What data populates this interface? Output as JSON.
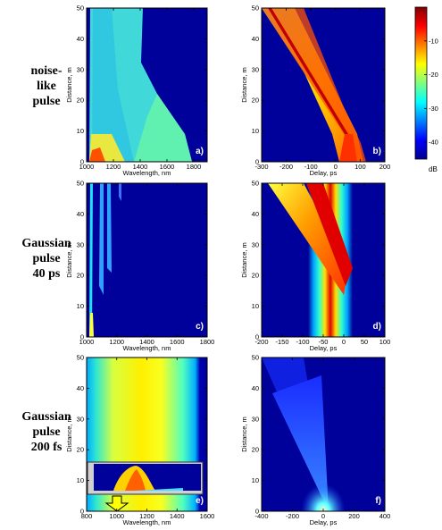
{
  "row_labels": [
    [
      "noise-",
      "like",
      "pulse"
    ],
    [
      "Gaussian",
      "pulse",
      "40 ps"
    ],
    [
      "Gaussian",
      "pulse",
      "200 fs"
    ]
  ],
  "colorbar": {
    "ticks": [
      -10,
      -20,
      -30,
      -40
    ],
    "unit": "dB",
    "range": [
      -45,
      0
    ]
  },
  "chart_data": [
    {
      "type": "heatmap",
      "panel": "a)",
      "xlabel": "Wavelength, nm",
      "ylabel": "Distance, m",
      "xlim": [
        1000,
        1900
      ],
      "ylim": [
        0,
        50
      ],
      "xticks": [
        1000,
        1200,
        1400,
        1600,
        1800
      ],
      "yticks": [
        0,
        10,
        20,
        30,
        40,
        50
      ]
    },
    {
      "type": "heatmap",
      "panel": "b)",
      "xlabel": "Delay, ps",
      "ylabel": "Distance, m",
      "xlim": [
        -300,
        200
      ],
      "ylim": [
        0,
        50
      ],
      "xticks": [
        -300,
        -200,
        -100,
        0,
        100,
        200
      ],
      "yticks": [
        0,
        10,
        20,
        30,
        40,
        50
      ]
    },
    {
      "type": "heatmap",
      "panel": "c)",
      "xlabel": "Wavelength, nm",
      "ylabel": "Distance, m",
      "xlim": [
        1000,
        1800
      ],
      "ylim": [
        0,
        50
      ],
      "xticks": [
        1000,
        1200,
        1400,
        1600,
        1800
      ],
      "yticks": [
        0,
        10,
        20,
        30,
        40,
        50
      ]
    },
    {
      "type": "heatmap",
      "panel": "d)",
      "xlabel": "Delay, ps",
      "ylabel": "Distance, m",
      "xlim": [
        -200,
        100
      ],
      "ylim": [
        0,
        50
      ],
      "xticks": [
        -200,
        -150,
        -100,
        -50,
        0,
        50,
        100
      ],
      "yticks": [
        0,
        10,
        20,
        30,
        40,
        50
      ]
    },
    {
      "type": "heatmap",
      "panel": "e)",
      "xlabel": "Wavelength, nm",
      "ylabel": "Distance, m",
      "xlim": [
        800,
        1600
      ],
      "ylim": [
        0,
        50
      ],
      "xticks": [
        800,
        1000,
        1200,
        1400,
        1600
      ],
      "yticks": [
        0,
        10,
        20,
        30,
        40,
        50
      ]
    },
    {
      "type": "heatmap",
      "panel": "f)",
      "xlabel": "Delay, ps",
      "ylabel": "Distance, m",
      "xlim": [
        -400,
        400
      ],
      "ylim": [
        0,
        50
      ],
      "xticks": [
        -400,
        -200,
        0,
        200,
        400
      ],
      "yticks": [
        0,
        10,
        20,
        30,
        40,
        50
      ]
    }
  ]
}
